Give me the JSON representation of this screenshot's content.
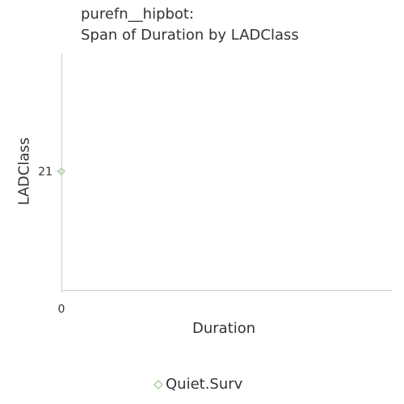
{
  "title": {
    "line1": "purefn__hipbot:",
    "line2": "Span of Duration by LADClass"
  },
  "colors": {
    "series": "#a9d39a",
    "axis": "#cccccc",
    "text": "#333333"
  },
  "chart_data": {
    "type": "scatter",
    "title": "purefn__hipbot: Span of Duration by LADClass",
    "xlabel": "Duration",
    "ylabel": "LADClass",
    "x_ticks": [
      "0"
    ],
    "y_ticks": [
      "21"
    ],
    "legend_position": "bottom",
    "grid": false,
    "series": [
      {
        "name": "Quiet.Surv",
        "marker": "diamond",
        "color": "#a9d39a",
        "points": [
          {
            "x": 0,
            "y": "21"
          }
        ]
      }
    ]
  }
}
